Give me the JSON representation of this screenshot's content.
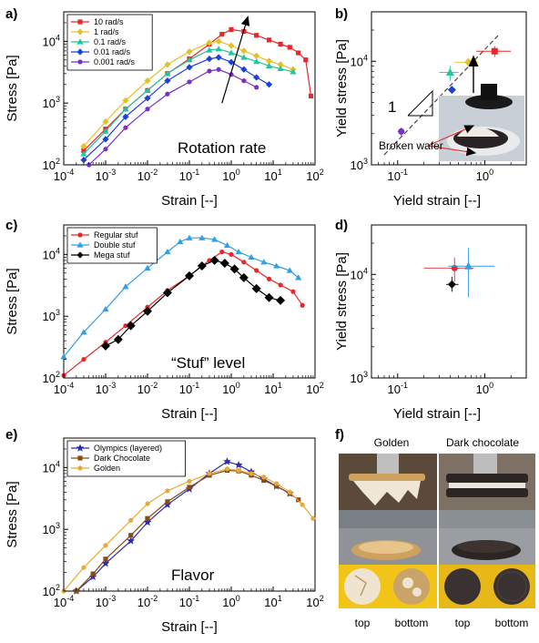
{
  "chart_data": [
    {
      "panel": "a)",
      "type": "line",
      "xlabel": "Strain [--]",
      "ylabel": "Stress [Pa]",
      "xscale": "log",
      "yscale": "log",
      "xlim": [
        0.0001,
        100
      ],
      "ylim": [
        100,
        30000
      ],
      "xticks": [
        "10-4",
        "10-3",
        "10-2",
        "10-1",
        "100",
        "101",
        "102"
      ],
      "yticks": [
        "102",
        "103",
        "104"
      ],
      "legend_position": "top-left",
      "annotation": "Rotation rate",
      "arrow": {
        "from": [
          0.6,
          1000
        ],
        "to": [
          2.5,
          25000
        ]
      },
      "series": [
        {
          "name": "10 rad/s",
          "color": "#e8262b",
          "marker": "square",
          "x": [
            0.0003,
            0.001,
            0.003,
            0.01,
            0.03,
            0.1,
            0.3,
            0.6,
            1,
            2,
            4,
            8,
            15,
            25,
            40,
            60,
            80
          ],
          "y": [
            170,
            380,
            800,
            1600,
            3000,
            5200,
            9000,
            13000,
            15500,
            14500,
            12500,
            10500,
            9000,
            8000,
            6500,
            5000,
            1300
          ]
        },
        {
          "name": "1 rad/s",
          "color": "#e2c22a",
          "marker": "diamond",
          "x": [
            0.0003,
            0.001,
            0.003,
            0.01,
            0.03,
            0.1,
            0.3,
            0.5,
            1,
            2,
            4,
            8,
            15,
            30
          ],
          "y": [
            200,
            500,
            1100,
            2300,
            4200,
            6800,
            9500,
            10000,
            8500,
            7000,
            5800,
            4800,
            4200,
            3500
          ]
        },
        {
          "name": "0.1 rad/s",
          "color": "#1ec79a",
          "marker": "triangle",
          "x": [
            0.0003,
            0.001,
            0.003,
            0.01,
            0.03,
            0.1,
            0.3,
            0.5,
            1,
            2,
            4,
            8,
            15,
            30
          ],
          "y": [
            150,
            350,
            800,
            1600,
            3000,
            5000,
            7200,
            7500,
            6500,
            5500,
            4700,
            4000,
            3600,
            3200
          ]
        },
        {
          "name": "0.01 rad/s",
          "color": "#1f3fd6",
          "marker": "diamond",
          "x": [
            0.0003,
            0.001,
            0.003,
            0.01,
            0.03,
            0.1,
            0.3,
            0.5,
            1,
            2,
            4,
            8
          ],
          "y": [
            120,
            260,
            600,
            1200,
            2300,
            3800,
            5200,
            5500,
            4600,
            3500,
            2600,
            2000
          ]
        },
        {
          "name": "0.001 rad/s",
          "color": "#7b2fc4",
          "marker": "circle",
          "x": [
            0.0004,
            0.001,
            0.003,
            0.01,
            0.03,
            0.1,
            0.3,
            0.5,
            1,
            2,
            4
          ],
          "y": [
            100,
            180,
            400,
            800,
            1400,
            2200,
            3300,
            3500,
            2900,
            2300,
            1800
          ]
        }
      ]
    },
    {
      "panel": "b)",
      "type": "scatter",
      "xlabel": "Yield strain [--]",
      "ylabel": "Yield stress [Pa]",
      "xscale": "log",
      "yscale": "log",
      "xlim": [
        0.05,
        3
      ],
      "ylim": [
        1000,
        30000
      ],
      "xticks": [
        "10-1",
        "100"
      ],
      "yticks": [
        "103",
        "104"
      ],
      "slope_label": "1",
      "photo_label": "Broken wafer",
      "points": [
        {
          "series": "10 rad/s",
          "color": "#e8262b",
          "marker": "square",
          "x": 1.3,
          "y": 12500,
          "xerr": [
            0.8,
            2.0
          ],
          "yerr": [
            11000,
            14000
          ]
        },
        {
          "series": "1 rad/s",
          "color": "#e2c22a",
          "marker": "diamond",
          "x": 0.65,
          "y": 9800,
          "xerr": [
            0.45,
            0.85
          ],
          "yerr": [
            9000,
            10500
          ]
        },
        {
          "series": "0.1 rad/s",
          "color": "#1ec79a",
          "marker": "triangle",
          "x": 0.4,
          "y": 7800,
          "xerr": [
            0.3,
            0.5
          ],
          "yerr": [
            6500,
            9000
          ]
        },
        {
          "series": "0.01 rad/s",
          "color": "#1f3fd6",
          "marker": "diamond",
          "x": 0.42,
          "y": 5300,
          "xerr": [
            0.38,
            0.46
          ],
          "yerr": [
            5000,
            5600
          ]
        },
        {
          "series": "0.001 rad/s",
          "color": "#7b2fc4",
          "marker": "circle",
          "x": 0.11,
          "y": 2100,
          "xerr": [
            0.1,
            0.12
          ],
          "yerr": [
            1900,
            2300
          ]
        }
      ]
    },
    {
      "panel": "c)",
      "type": "line",
      "xlabel": "Strain [--]",
      "ylabel": "Stress [Pa]",
      "xscale": "log",
      "yscale": "log",
      "xlim": [
        0.0001,
        100
      ],
      "ylim": [
        100,
        30000
      ],
      "xticks": [
        "10-4",
        "10-3",
        "10-2",
        "10-1",
        "100",
        "101",
        "102"
      ],
      "yticks": [
        "102",
        "103",
        "104"
      ],
      "legend_position": "top-left",
      "annotation": "“Stuf” level",
      "series": [
        {
          "name": "Regular stuf",
          "color": "#e8262b",
          "marker": "circle",
          "x": [
            0.0001,
            0.0003,
            0.001,
            0.003,
            0.01,
            0.03,
            0.1,
            0.3,
            0.6,
            1,
            2,
            4,
            8,
            15,
            30,
            50
          ],
          "y": [
            110,
            200,
            380,
            700,
            1400,
            2600,
            4500,
            8000,
            11000,
            10000,
            7500,
            5500,
            4000,
            3200,
            2500,
            1500
          ]
        },
        {
          "name": "Double stuf",
          "color": "#2e9fe8",
          "marker": "triangle",
          "x": [
            0.0001,
            0.0003,
            0.001,
            0.003,
            0.01,
            0.03,
            0.06,
            0.1,
            0.2,
            0.4,
            0.8,
            1.5,
            3,
            6,
            12,
            25,
            40
          ],
          "y": [
            220,
            550,
            1300,
            3000,
            6000,
            11000,
            16000,
            18500,
            18500,
            17500,
            14000,
            11000,
            9000,
            7500,
            6500,
            5500,
            4200
          ]
        },
        {
          "name": "Mega stuf",
          "color": "#000000",
          "marker": "diamond",
          "x": [
            0.001,
            0.002,
            0.004,
            0.01,
            0.03,
            0.1,
            0.2,
            0.4,
            0.7,
            1.2,
            2,
            4,
            8,
            15
          ],
          "y": [
            330,
            420,
            700,
            1200,
            2400,
            4500,
            6500,
            8000,
            7200,
            5800,
            4200,
            2800,
            2000,
            1800
          ]
        }
      ]
    },
    {
      "panel": "d)",
      "type": "scatter",
      "xlabel": "Yield strain [--]",
      "ylabel": "Yield stress [Pa]",
      "xscale": "log",
      "yscale": "log",
      "xlim": [
        0.05,
        3
      ],
      "ylim": [
        1000,
        30000
      ],
      "xticks": [
        "10-1",
        "100"
      ],
      "yticks": [
        "103",
        "104"
      ],
      "points": [
        {
          "series": "Regular stuf",
          "color": "#e8262b",
          "marker": "circle",
          "x": 0.45,
          "y": 11500,
          "xerr": [
            0.2,
            0.75
          ],
          "yerr": [
            8500,
            14500
          ]
        },
        {
          "series": "Double stuf",
          "color": "#2e9fe8",
          "marker": "triangle",
          "x": 0.65,
          "y": 12000,
          "xerr": [
            0.38,
            1.3
          ],
          "yerr": [
            6000,
            18000
          ]
        },
        {
          "series": "Mega stuf",
          "color": "#000000",
          "marker": "diamond",
          "x": 0.42,
          "y": 8000,
          "xerr": [
            0.36,
            0.5
          ],
          "yerr": [
            6800,
            9500
          ]
        }
      ]
    },
    {
      "panel": "e)",
      "type": "line",
      "xlabel": "Strain [--]",
      "ylabel": "Stress [Pa]",
      "xscale": "log",
      "yscale": "log",
      "xlim": [
        0.0001,
        100
      ],
      "ylim": [
        100,
        30000
      ],
      "xticks": [
        "10-4",
        "10-3",
        "10-2",
        "10-1",
        "100",
        "101",
        "102"
      ],
      "yticks": [
        "102",
        "103",
        "104"
      ],
      "legend_position": "top-left",
      "annotation": "Flavor",
      "series": [
        {
          "name": "Olympics (layered)",
          "color": "#2b2fb0",
          "marker": "star",
          "x": [
            0.0002,
            0.0005,
            0.001,
            0.004,
            0.01,
            0.03,
            0.1,
            0.3,
            0.8,
            1.5,
            3,
            6,
            12,
            25
          ],
          "y": [
            100,
            170,
            280,
            650,
            1300,
            2500,
            4500,
            8000,
            12500,
            11000,
            8500,
            6500,
            5000,
            3800
          ]
        },
        {
          "name": "Dark Chocolate",
          "color": "#8b4a12",
          "marker": "square",
          "x": [
            0.0002,
            0.0005,
            0.001,
            0.004,
            0.01,
            0.03,
            0.1,
            0.3,
            0.8,
            1.5,
            3,
            6,
            12,
            25,
            40
          ],
          "y": [
            100,
            190,
            330,
            800,
            1500,
            2800,
            4800,
            7500,
            9000,
            8800,
            7500,
            6200,
            5000,
            3800,
            3000
          ]
        },
        {
          "name": "Golden",
          "color": "#e9a93a",
          "marker": "circle",
          "x": [
            0.0001,
            0.0003,
            0.001,
            0.004,
            0.01,
            0.03,
            0.1,
            0.3,
            0.8,
            1.5,
            3,
            6,
            12,
            25,
            50,
            90
          ],
          "y": [
            100,
            240,
            550,
            1400,
            2600,
            4200,
            6000,
            8000,
            9500,
            9000,
            8000,
            7000,
            5500,
            4000,
            2500,
            1500
          ]
        }
      ]
    },
    {
      "panel": "f)",
      "type": "photo",
      "columns": [
        "Golden",
        "Dark chocolate"
      ],
      "bottom_labels": [
        "top",
        "bottom",
        "top",
        "bottom"
      ]
    }
  ]
}
